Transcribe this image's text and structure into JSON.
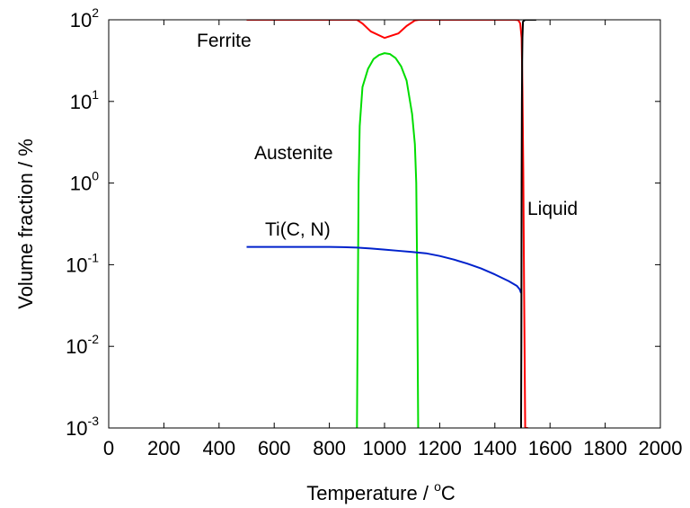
{
  "chart_data": {
    "type": "line",
    "title": "",
    "xlabel": "Temperature / °C",
    "ylabel": "Volume fraction / %",
    "xlim": [
      0,
      2000
    ],
    "ylim": [
      0.001,
      100
    ],
    "yscale": "log",
    "x_ticks": [
      "0",
      "200",
      "400",
      "600",
      "800",
      "1000",
      "1200",
      "1400",
      "1600",
      "1800",
      "2000"
    ],
    "y_ticks": [
      {
        "base": "10",
        "exp": "-3",
        "value": 0.001
      },
      {
        "base": "10",
        "exp": "-2",
        "value": 0.01
      },
      {
        "base": "10",
        "exp": "-1",
        "value": 0.1
      },
      {
        "base": "10",
        "exp": "0",
        "value": 1
      },
      {
        "base": "10",
        "exp": "1",
        "value": 10
      },
      {
        "base": "10",
        "exp": "2",
        "value": 100
      }
    ],
    "grid": false,
    "annotations": [
      "Ferrite",
      "Austenite",
      "Ti(C, N)",
      "Liquid"
    ],
    "series": [
      {
        "color": "#ff0000",
        "x": [
          500,
          800,
          900,
          920,
          950,
          1000,
          1050,
          1080,
          1110,
          1125,
          1300,
          1470,
          1485,
          1492,
          1497,
          1500,
          1503,
          1506,
          1510,
          1520
        ],
        "y": [
          100,
          100,
          100,
          90,
          72,
          60,
          68,
          84,
          98,
          100,
          100,
          100,
          99,
          90,
          60,
          15,
          1.5,
          0.05,
          0.001,
          0.001
        ]
      },
      {
        "color": "#00dd00",
        "x": [
          900,
          902,
          904,
          906,
          910,
          920,
          940,
          960,
          980,
          1000,
          1020,
          1040,
          1060,
          1080,
          1100,
          1110,
          1115,
          1118,
          1120,
          1122
        ],
        "y": [
          0.001,
          0.01,
          0.1,
          1,
          5,
          15,
          25,
          33,
          37,
          39,
          38,
          34,
          27,
          18,
          7,
          3,
          1,
          0.1,
          0.01,
          0.001
        ]
      },
      {
        "color": "#0022cc",
        "x": [
          500,
          600,
          700,
          800,
          850,
          900,
          950,
          1000,
          1050,
          1100,
          1150,
          1200,
          1250,
          1300,
          1350,
          1400,
          1450,
          1480,
          1490,
          1495
        ],
        "y": [
          0.165,
          0.165,
          0.165,
          0.165,
          0.164,
          0.162,
          0.158,
          0.153,
          0.148,
          0.143,
          0.138,
          0.128,
          0.116,
          0.103,
          0.09,
          0.076,
          0.063,
          0.055,
          0.05,
          0.045
        ]
      },
      {
        "color": "#000000",
        "x": [
          1495,
          1496,
          1497,
          1498,
          1499,
          1500,
          1502,
          1510,
          1550
        ],
        "y": [
          0.001,
          0.01,
          1,
          10,
          30,
          60,
          95,
          100,
          100
        ]
      }
    ]
  }
}
